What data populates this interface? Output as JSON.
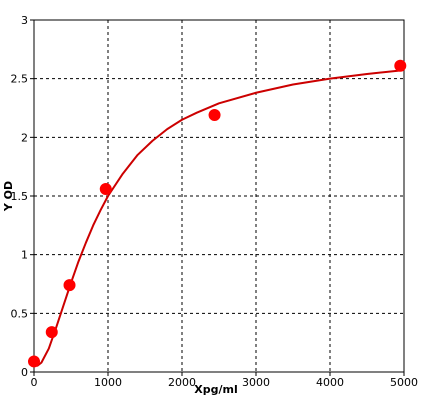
{
  "chart_data": {
    "type": "scatter",
    "title": "",
    "xlabel": "Xpg/ml",
    "ylabel": "Y OD",
    "xlim": [
      0,
      5000
    ],
    "ylim": [
      0,
      3
    ],
    "grid": true,
    "x_ticks": [
      "0",
      "1000",
      "2000",
      "3000",
      "4000",
      "5000"
    ],
    "y_ticks": [
      "0",
      "0.5",
      "1",
      "1.5",
      "2",
      "2.5",
      "3"
    ],
    "points": [
      {
        "x": 0,
        "y": 0.09
      },
      {
        "x": 240,
        "y": 0.34
      },
      {
        "x": 480,
        "y": 0.74
      },
      {
        "x": 970,
        "y": 1.56
      },
      {
        "x": 2440,
        "y": 2.19
      },
      {
        "x": 4950,
        "y": 2.61
      }
    ],
    "fit_curve": [
      {
        "x": 40,
        "y": 0.05
      },
      {
        "x": 100,
        "y": 0.08
      },
      {
        "x": 200,
        "y": 0.2
      },
      {
        "x": 300,
        "y": 0.38
      },
      {
        "x": 400,
        "y": 0.57
      },
      {
        "x": 500,
        "y": 0.76
      },
      {
        "x": 600,
        "y": 0.94
      },
      {
        "x": 700,
        "y": 1.1
      },
      {
        "x": 800,
        "y": 1.25
      },
      {
        "x": 900,
        "y": 1.38
      },
      {
        "x": 1000,
        "y": 1.5
      },
      {
        "x": 1200,
        "y": 1.69
      },
      {
        "x": 1400,
        "y": 1.85
      },
      {
        "x": 1600,
        "y": 1.97
      },
      {
        "x": 1800,
        "y": 2.07
      },
      {
        "x": 2000,
        "y": 2.15
      },
      {
        "x": 2200,
        "y": 2.21
      },
      {
        "x": 2500,
        "y": 2.29
      },
      {
        "x": 3000,
        "y": 2.38
      },
      {
        "x": 3500,
        "y": 2.45
      },
      {
        "x": 4000,
        "y": 2.5
      },
      {
        "x": 4500,
        "y": 2.54
      },
      {
        "x": 4950,
        "y": 2.57
      }
    ],
    "colors": {
      "point": "#ff0000",
      "curve": "#cc0000",
      "grid": "#000000",
      "axis": "#000000"
    }
  }
}
